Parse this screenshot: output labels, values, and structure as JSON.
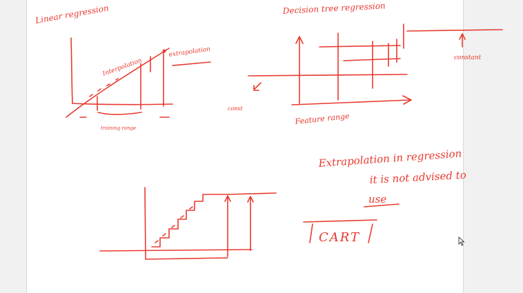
{
  "whiteboard": {
    "ink_color": "#e8392e",
    "titles": {
      "linear": "Linear regression",
      "decision_tree": "Decision tree regression"
    },
    "labels": {
      "interpolation": "Interpolation",
      "extrapolation": "extrapolation",
      "training": "training range",
      "feature_range": "Feature range",
      "constant": "constant",
      "constant_short": "const"
    },
    "note": {
      "line1": "Extrapolation in regression",
      "line2": "it is not advised to",
      "line3": "use"
    },
    "cart": "CART",
    "cursor_icon": "mouse-pointer-icon"
  }
}
